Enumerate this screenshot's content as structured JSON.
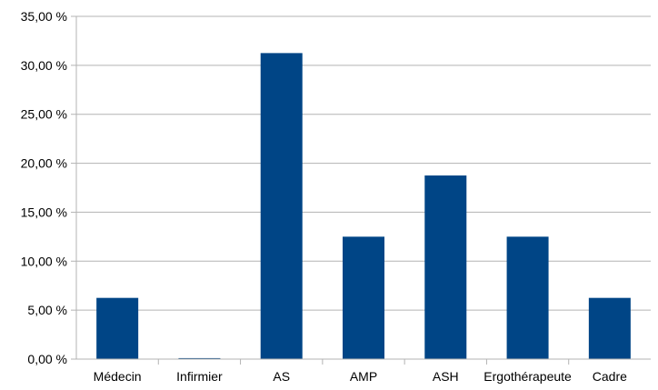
{
  "chart_data": {
    "type": "bar",
    "categories": [
      "Médecin",
      "Infirmier",
      "AS",
      "AMP",
      "ASH",
      "Ergothérapeute",
      "Cadre"
    ],
    "values": [
      6.25,
      0.1,
      31.25,
      12.5,
      18.75,
      12.5,
      6.25
    ],
    "y_ticks": [
      "0,00 %",
      "5,00 %",
      "10,00 %",
      "15,00 %",
      "20,00 %",
      "25,00 %",
      "30,00 %",
      "35,00 %"
    ],
    "ylim": [
      0,
      35
    ],
    "y_step": 5,
    "grid": true,
    "legend": "none",
    "colors": {
      "bar": "#004586",
      "grid": "#b3b3b3",
      "axis": "#b3b3b3"
    }
  }
}
